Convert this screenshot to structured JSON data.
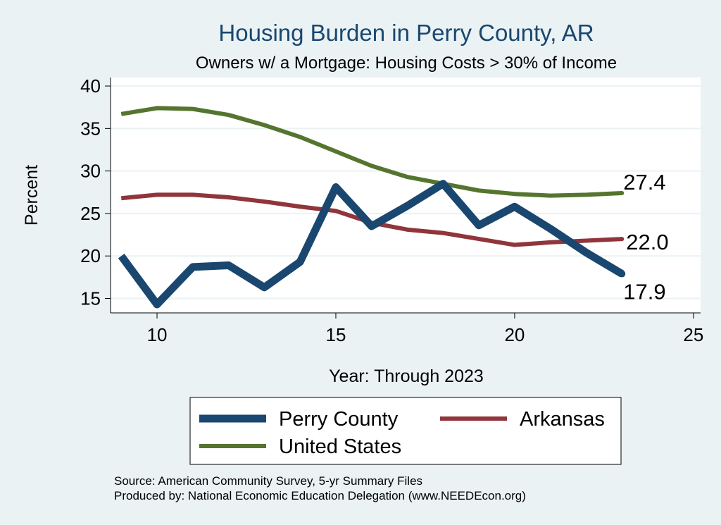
{
  "chart_data": {
    "type": "line",
    "title": "Housing Burden in Perry County, AR",
    "subtitle": "Owners w/ a Mortgage: Housing Costs > 30% of Income",
    "xlabel": "Year: Through 2023",
    "ylabel": "Percent",
    "xlim": [
      8.7,
      25.2
    ],
    "ylim": [
      13.3,
      41.0
    ],
    "xticks": [
      10,
      15,
      20,
      25
    ],
    "yticks": [
      15,
      20,
      25,
      30,
      35,
      40
    ],
    "grid": true,
    "legend_position": "bottom",
    "x": [
      9,
      10,
      11,
      12,
      13,
      14,
      15,
      16,
      17,
      18,
      19,
      20,
      21,
      22,
      23
    ],
    "series": [
      {
        "name": "Perry County",
        "color": "#1a476f",
        "values": [
          20.0,
          14.3,
          18.7,
          18.9,
          16.3,
          19.3,
          28.1,
          23.5,
          25.9,
          28.5,
          23.6,
          25.8,
          23.2,
          20.4,
          17.9
        ],
        "end_label": "17.9"
      },
      {
        "name": "Arkansas",
        "color": "#90353b",
        "values": [
          26.8,
          27.2,
          27.2,
          26.9,
          26.4,
          25.8,
          25.3,
          23.9,
          23.1,
          22.7,
          22.0,
          21.3,
          21.6,
          21.8,
          22.0
        ],
        "end_label": "22.0"
      },
      {
        "name": "United States",
        "color": "#55752f",
        "values": [
          36.7,
          37.4,
          37.3,
          36.6,
          35.4,
          34.0,
          32.3,
          30.6,
          29.3,
          28.5,
          27.7,
          27.3,
          27.1,
          27.2,
          27.4
        ],
        "end_label": "27.4"
      }
    ],
    "source_lines": [
      "Source: American Community Survey, 5-yr Summary Files",
      "Produced by: National Economic Education Delegation (www.NEEDEcon.org)"
    ]
  },
  "colors": {
    "background": "#eaf2f3",
    "plot_background": "#ffffff",
    "grid": "#eaf2f3",
    "title": "#1a476f"
  }
}
